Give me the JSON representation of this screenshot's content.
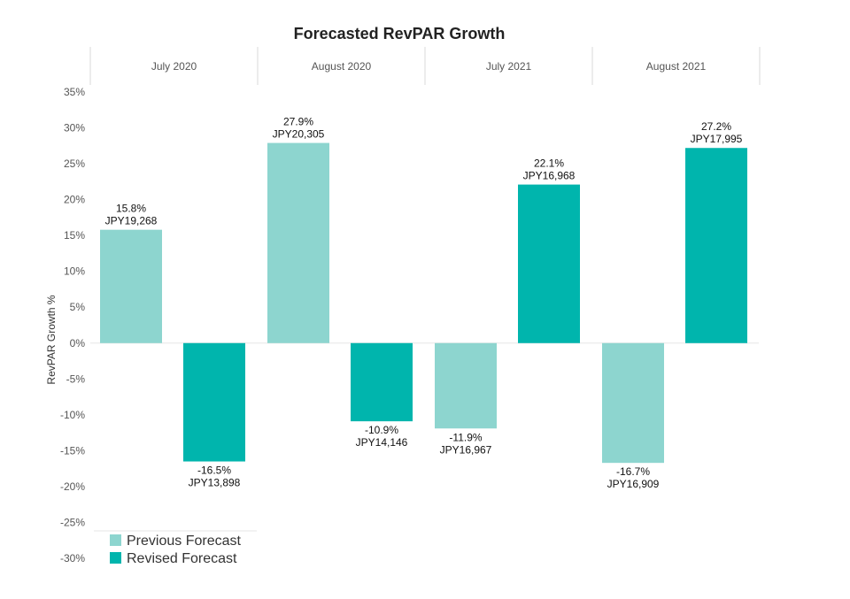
{
  "chart_data": {
    "type": "bar",
    "title": "Forecasted RevPAR Growth",
    "ylabel": "RevPAR Growth %",
    "ylim": [
      -30,
      35
    ],
    "yticks": [
      "35%",
      "30%",
      "25%",
      "20%",
      "15%",
      "10%",
      "5%",
      "0%",
      "-5%",
      "-10%",
      "-15%",
      "-20%",
      "-25%",
      "-30%"
    ],
    "ytick_values": [
      35,
      30,
      25,
      20,
      15,
      10,
      5,
      0,
      -5,
      -10,
      -15,
      -20,
      -25,
      -30
    ],
    "categories": [
      "July 2020",
      "August 2020",
      "July 2021",
      "August 2021"
    ],
    "series": [
      {
        "name": "Previous Forecast",
        "color": "#8dd5cf",
        "values": [
          15.8,
          27.9,
          -11.9,
          -16.7
        ],
        "labels": [
          "15.8%",
          "27.9%",
          "-11.9%",
          "-16.7%"
        ],
        "revpar": [
          "JPY19,268",
          "JPY20,305",
          "JPY16,967",
          "JPY16,909"
        ]
      },
      {
        "name": "Revised Forecast",
        "color": "#00b5ad",
        "values": [
          -16.5,
          -10.9,
          22.1,
          27.2
        ],
        "labels": [
          "-16.5%",
          "-10.9%",
          "22.1%",
          "27.2%"
        ],
        "revpar": [
          "JPY13,898",
          "JPY14,146",
          "JPY16,968",
          "JPY17,995"
        ]
      }
    ],
    "legend_position": "bottom-left",
    "grid": false
  }
}
